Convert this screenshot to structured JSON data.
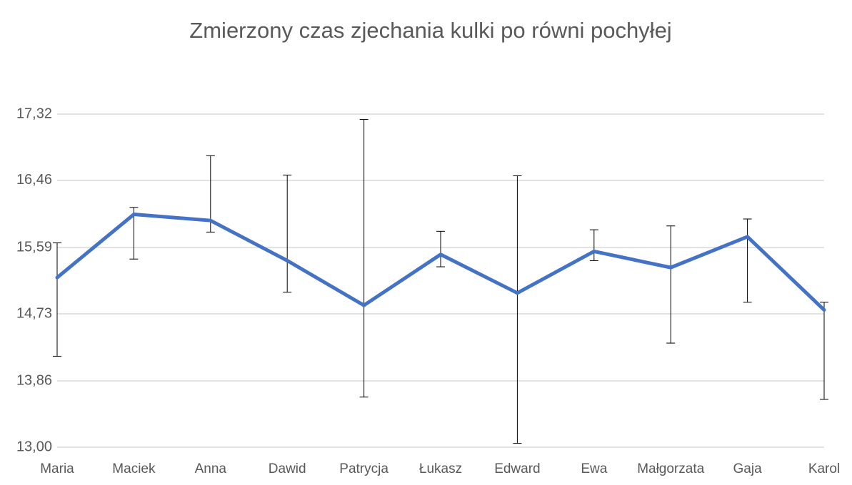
{
  "chart_data": {
    "type": "line",
    "title": "Zmierzony czas zjechania kulki po równi pochyłej",
    "categories": [
      "Maria",
      "Maciek",
      "Anna",
      "Dawid",
      "Patrycja",
      "Łukasz",
      "Edward",
      "Ewa",
      "Małgorzata",
      "Gaja",
      "Karol"
    ],
    "series": [
      {
        "color": "#4472c4",
        "values": [
          15.2,
          16.02,
          15.94,
          15.42,
          14.84,
          15.5,
          15.0,
          15.54,
          15.33,
          15.73,
          14.78
        ],
        "error_plus": [
          0.45,
          0.09,
          0.84,
          1.11,
          2.41,
          0.3,
          1.52,
          0.28,
          0.54,
          0.23,
          0.1
        ],
        "error_minus": [
          1.02,
          0.58,
          0.15,
          0.41,
          1.19,
          0.16,
          1.95,
          0.12,
          0.98,
          0.85,
          1.16
        ]
      }
    ],
    "ylim": [
      13.0,
      17.32
    ],
    "yticks": [
      {
        "value": 13.0,
        "label": "13,00"
      },
      {
        "value": 13.86,
        "label": "13,86"
      },
      {
        "value": 14.73,
        "label": "14,73"
      },
      {
        "value": 15.59,
        "label": "15,59"
      },
      {
        "value": 16.46,
        "label": "16,46"
      },
      {
        "value": 17.32,
        "label": "17,32"
      }
    ],
    "grid": true
  }
}
